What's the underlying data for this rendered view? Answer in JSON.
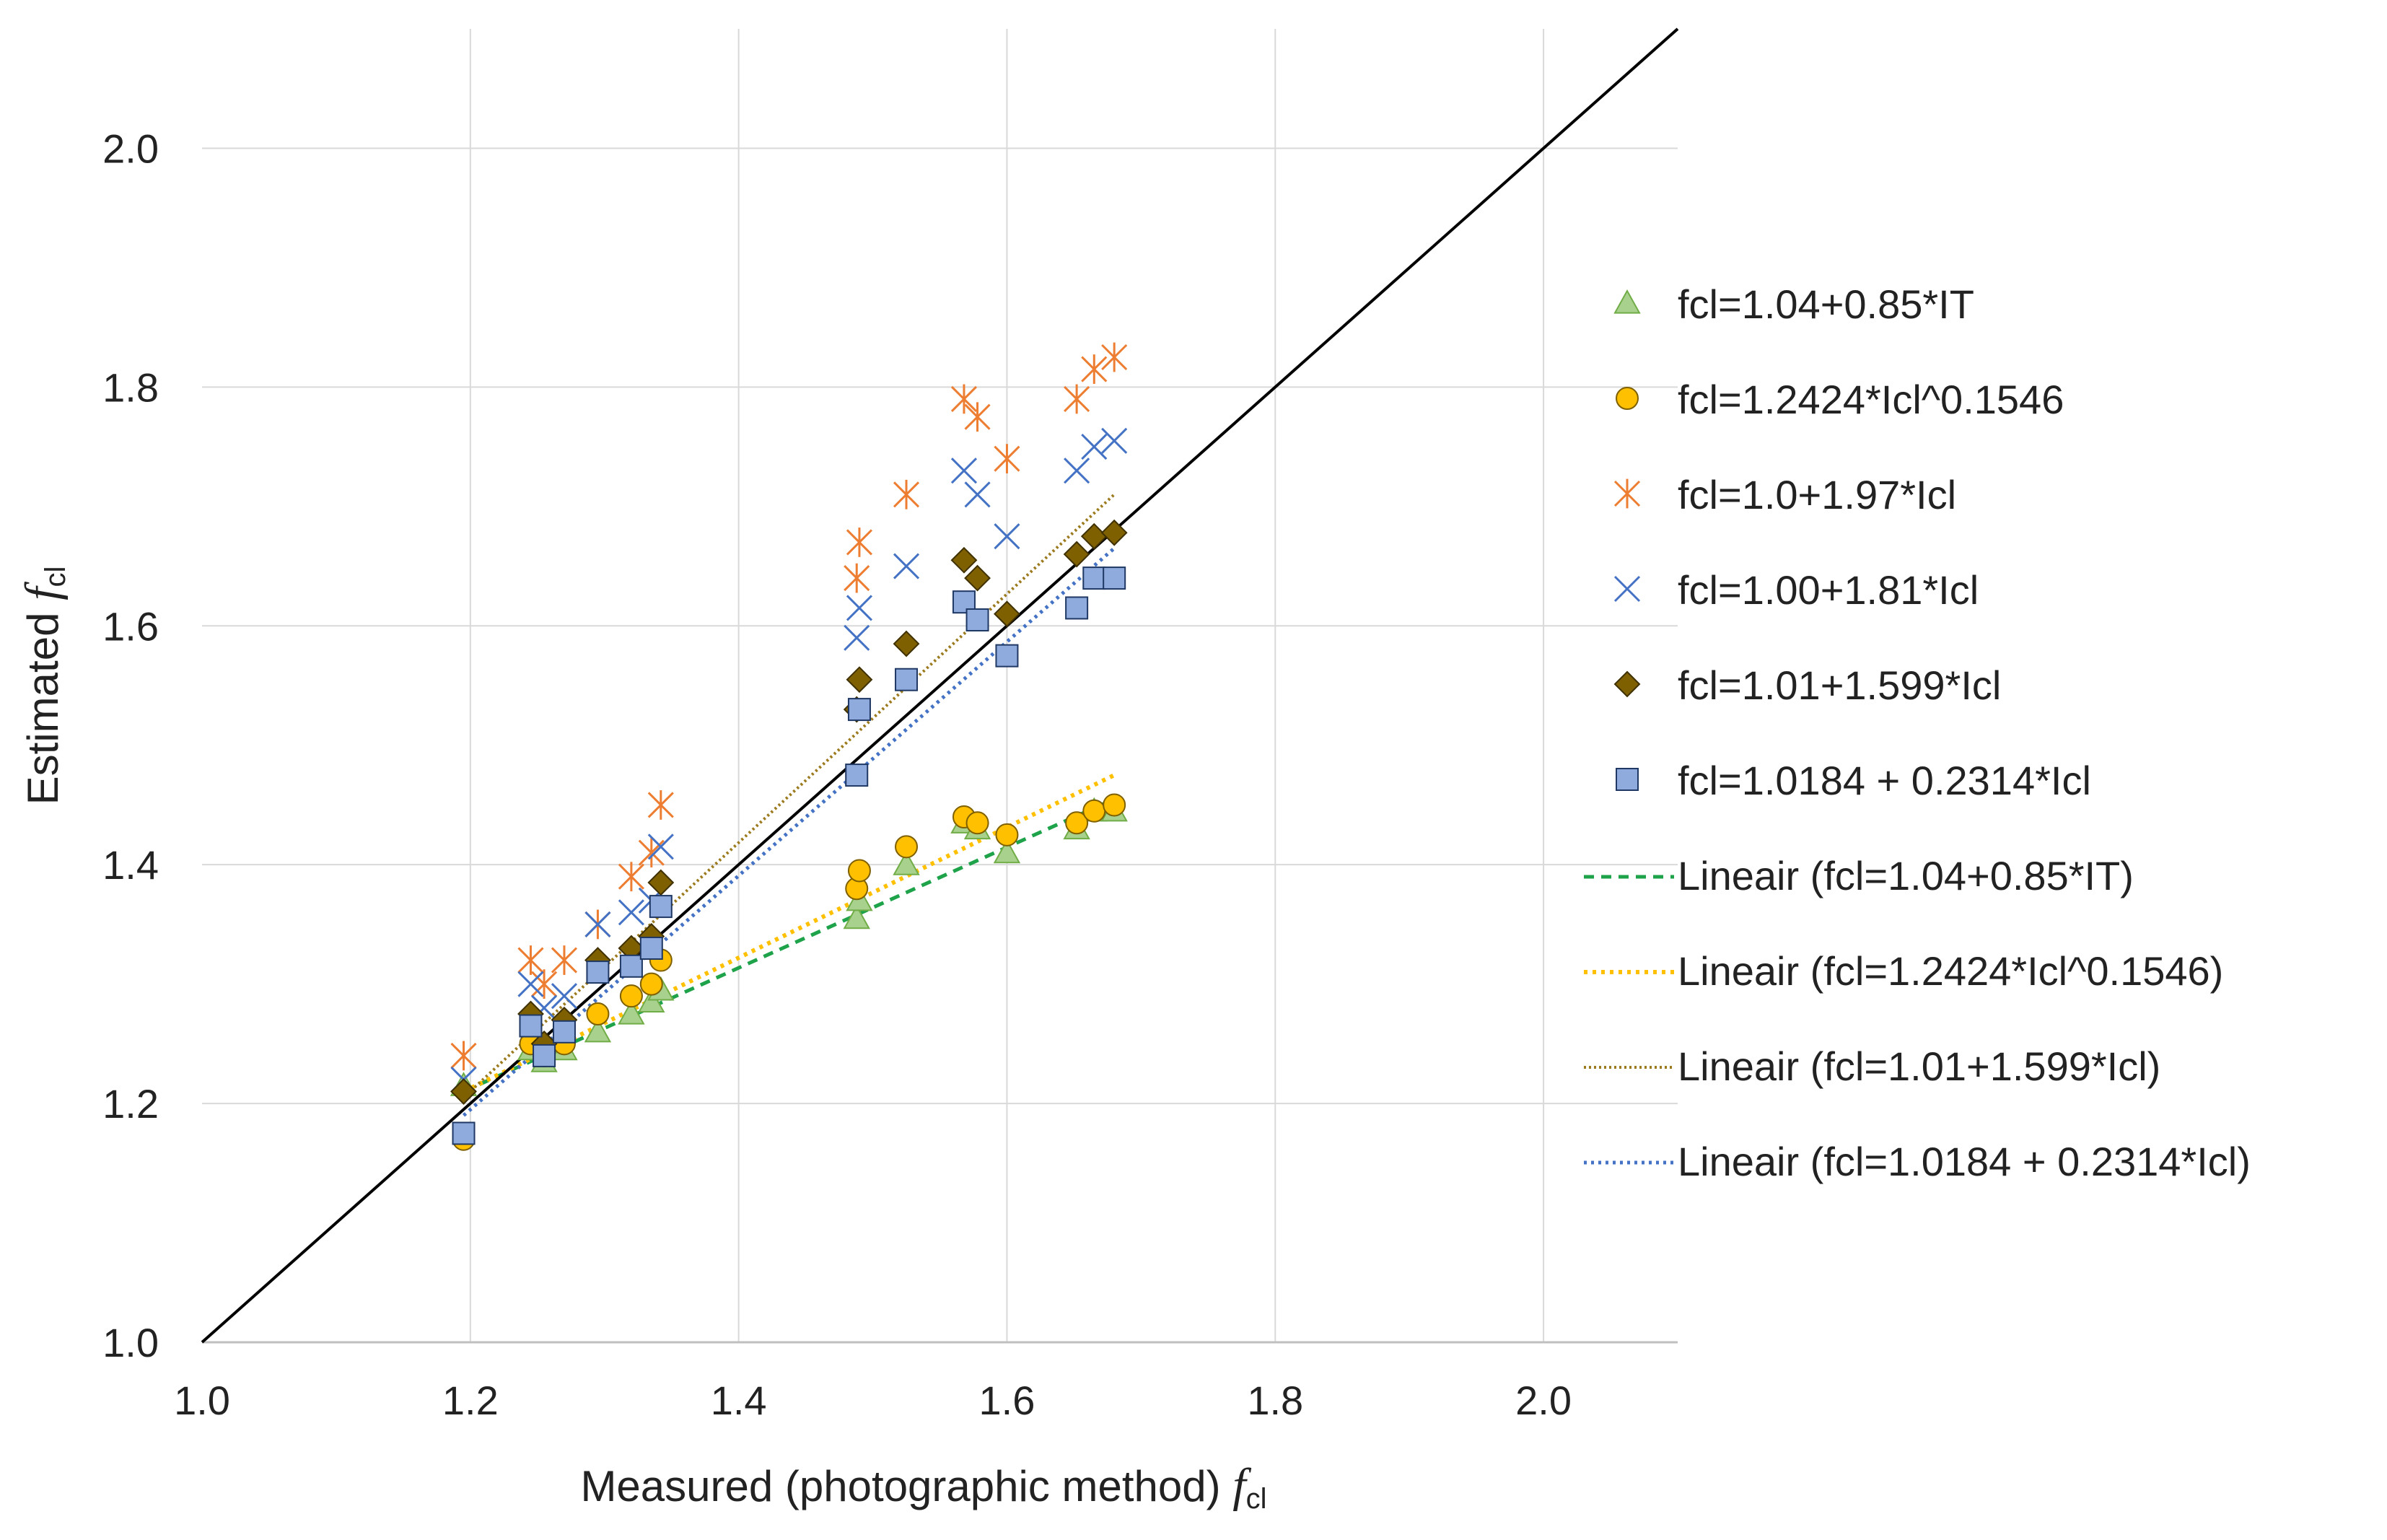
{
  "chart_data": {
    "type": "scatter",
    "xlabel": "Measured (photographic method) ",
    "xlabel_symbol": "f",
    "xlabel_sub": "cl",
    "ylabel": "Estimated ",
    "ylabel_symbol": "f",
    "ylabel_sub": "cl",
    "xlim": [
      1.0,
      2.1
    ],
    "ylim": [
      1.0,
      2.1
    ],
    "x_ticks": [
      "1.0",
      "1.2",
      "1.4",
      "1.6",
      "1.8",
      "2.0"
    ],
    "y_ticks": [
      "1.0",
      "1.2",
      "1.4",
      "1.6",
      "1.8",
      "2.0"
    ],
    "x_tick_values": [
      1.0,
      1.2,
      1.4,
      1.6,
      1.8,
      2.0
    ],
    "y_tick_values": [
      1.0,
      1.2,
      1.4,
      1.6,
      1.8,
      2.0
    ],
    "grid": true,
    "legend_position": "right",
    "identity_line": {
      "from": [
        1.0,
        1.0
      ],
      "to": [
        2.1,
        2.1
      ],
      "color": "#000000"
    },
    "x": [
      1.195,
      1.245,
      1.255,
      1.27,
      1.295,
      1.32,
      1.335,
      1.342,
      1.488,
      1.49,
      1.525,
      1.568,
      1.578,
      1.6,
      1.652,
      1.665,
      1.68
    ],
    "series": [
      {
        "name": "fcl=1.04+0.85*IT",
        "marker": "triangle",
        "color": "#a9d18e",
        "stroke": "#70ad47",
        "values": [
          1.215,
          1.245,
          1.235,
          1.245,
          1.26,
          1.275,
          1.285,
          1.295,
          1.355,
          1.37,
          1.4,
          1.435,
          1.43,
          1.41,
          1.43,
          1.445,
          1.445
        ]
      },
      {
        "name": "fcl=1.2424*Icl^0.1546",
        "marker": "circle",
        "color": "#ffc000",
        "stroke": "#7f6000",
        "values": [
          1.17,
          1.25,
          1.24,
          1.25,
          1.275,
          1.29,
          1.3,
          1.32,
          1.38,
          1.395,
          1.415,
          1.44,
          1.435,
          1.425,
          1.435,
          1.445,
          1.45
        ]
      },
      {
        "name": "fcl=1.0+1.97*Icl",
        "marker": "star",
        "color": "#f4b183",
        "stroke": "#ed7d31",
        "values": [
          1.24,
          1.32,
          1.3,
          1.32,
          1.35,
          1.39,
          1.41,
          1.45,
          1.64,
          1.67,
          1.71,
          1.79,
          1.775,
          1.74,
          1.79,
          1.815,
          1.825
        ]
      },
      {
        "name": "fcl=1.00+1.81*Icl",
        "marker": "x",
        "color": "#4472c4",
        "stroke": "#4472c4",
        "values": [
          1.22,
          1.3,
          1.28,
          1.29,
          1.35,
          1.36,
          1.37,
          1.415,
          1.59,
          1.615,
          1.65,
          1.73,
          1.71,
          1.675,
          1.73,
          1.75,
          1.755
        ]
      },
      {
        "name": "fcl=1.01+1.599*Icl",
        "marker": "diamond",
        "color": "#7f6000",
        "stroke": "#3f3000",
        "values": [
          1.21,
          1.275,
          1.25,
          1.27,
          1.32,
          1.33,
          1.34,
          1.385,
          1.53,
          1.555,
          1.585,
          1.655,
          1.64,
          1.61,
          1.66,
          1.675,
          1.678
        ]
      },
      {
        "name": "fcl=1.0184 + 0.2314*Icl",
        "marker": "square",
        "color": "#8faadc",
        "stroke": "#1f3864",
        "values": [
          1.175,
          1.265,
          1.24,
          1.26,
          1.31,
          1.315,
          1.33,
          1.365,
          1.475,
          1.53,
          1.555,
          1.62,
          1.605,
          1.575,
          1.615,
          1.64,
          1.64
        ]
      }
    ],
    "trendlines": [
      {
        "name": "Lineair (fcl=1.04+0.85*IT)",
        "color": "#1fa34a",
        "dash": "14 10",
        "width": 5,
        "from": [
          1.195,
          1.21
        ],
        "to": [
          1.68,
          1.455
        ]
      },
      {
        "name": "Lineair (fcl=1.2424*Icl^0.1546)",
        "color": "#ffc000",
        "dash": "5 7",
        "width": 6,
        "from": [
          1.195,
          1.21
        ],
        "to": [
          1.68,
          1.475
        ]
      },
      {
        "name": "Lineair (fcl=1.01+1.599*Icl)",
        "color": "#9c7a1e",
        "dash": "3 4",
        "width": 4,
        "from": [
          1.195,
          1.205
        ],
        "to": [
          1.68,
          1.71
        ]
      },
      {
        "name": "Lineair (fcl=1.0184 + 0.2314*Icl)",
        "color": "#4472c4",
        "dash": "4 6",
        "width": 5,
        "from": [
          1.195,
          1.19
        ],
        "to": [
          1.68,
          1.665
        ]
      }
    ]
  }
}
